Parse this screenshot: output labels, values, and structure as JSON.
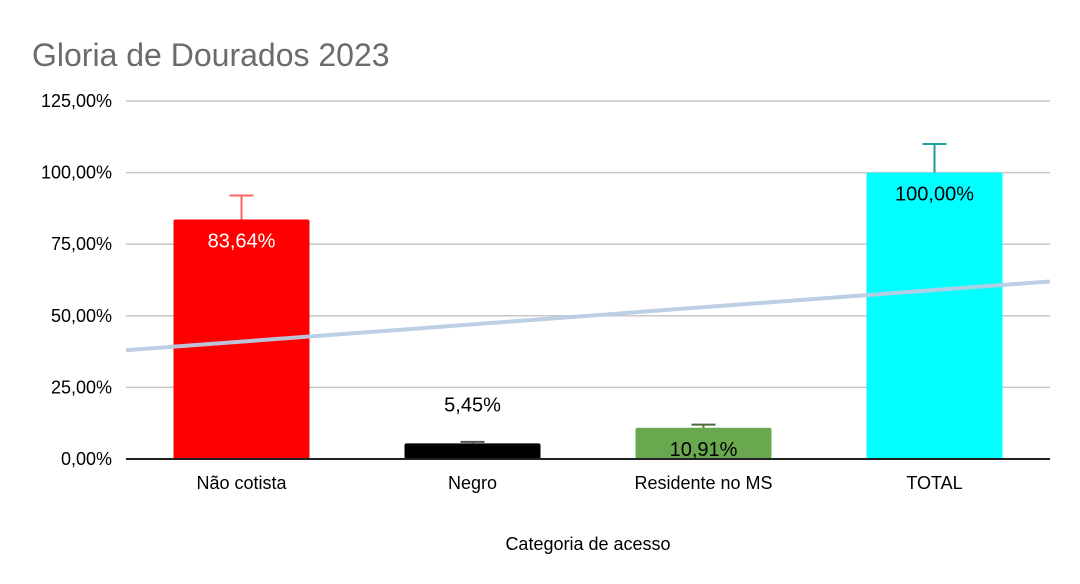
{
  "chart_data": {
    "type": "bar",
    "title": "Gloria de Dourados 2023",
    "xlabel": "Categoria de acesso",
    "ylabel": "",
    "ylim": [
      0,
      125
    ],
    "yticks": [
      "0,00%",
      "25,00%",
      "50,00%",
      "75,00%",
      "100,00%",
      "125,00%"
    ],
    "ytick_values": [
      0,
      25,
      50,
      75,
      100,
      125
    ],
    "categories": [
      "Não cotista",
      "Negro",
      "Residente no MS",
      "TOTAL"
    ],
    "values": [
      83.64,
      5.45,
      10.91,
      100.0
    ],
    "data_labels": [
      "83,64%",
      "5,45%",
      "10,91%",
      "100,00%"
    ],
    "bar_colors": [
      "#ff0000",
      "#000000",
      "#6aa84f",
      "#00ffff"
    ],
    "error_bar_colors": [
      "#ff6666",
      "#555555",
      "#4a6b3a",
      "#1a9e9e"
    ],
    "error_upper": [
      92,
      6,
      12,
      110
    ],
    "data_label_colors": [
      "#ffffff",
      "#000000",
      "#000000",
      "#000000"
    ],
    "data_label_position": [
      "inside",
      "above",
      "inside",
      "inside"
    ],
    "trendline": {
      "type": "linear",
      "color": "#b8cce4",
      "y_start": 38,
      "y_end": 62
    },
    "grid": true,
    "legend": "none"
  }
}
